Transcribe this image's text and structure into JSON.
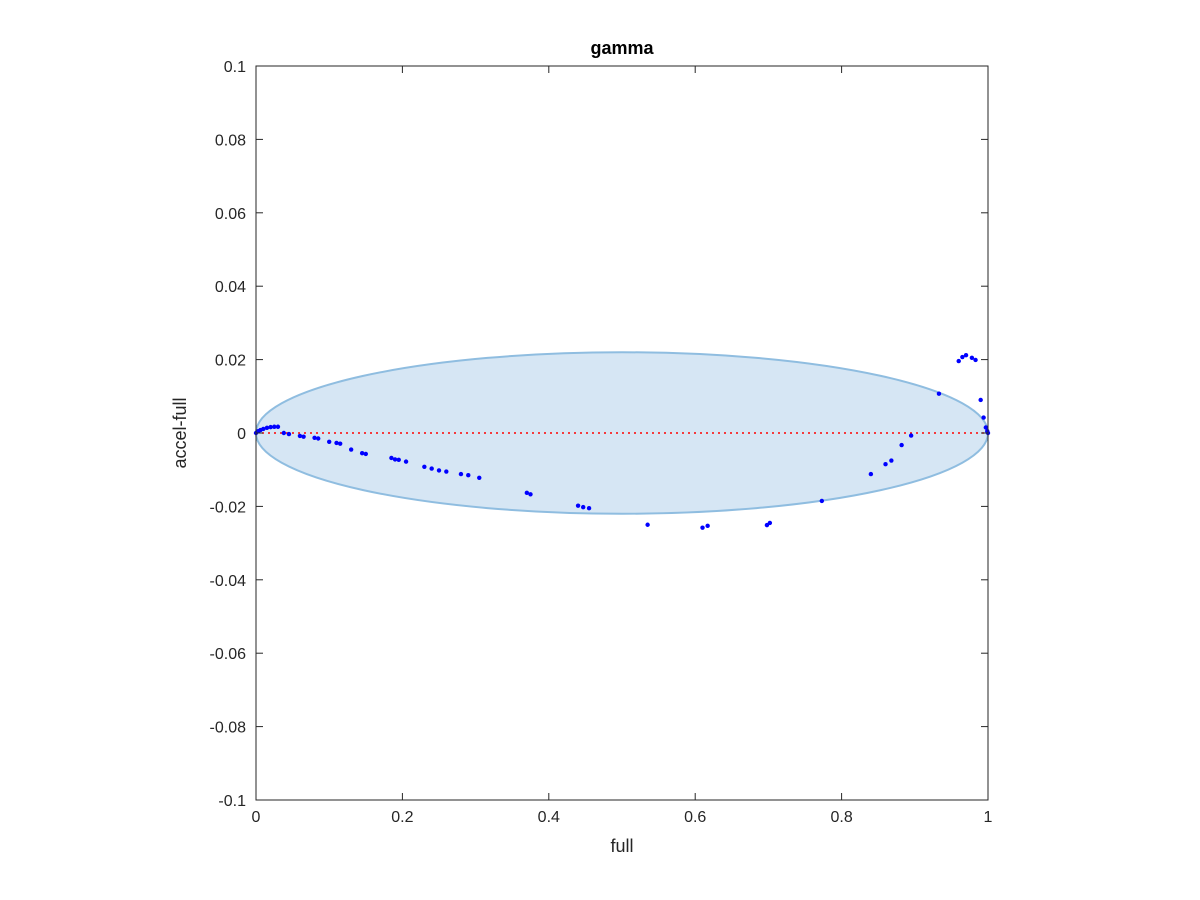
{
  "chart_data": {
    "type": "scatter",
    "title": "gamma",
    "xlabel": "full",
    "ylabel": "accel-full",
    "xlim": [
      0,
      1
    ],
    "ylim": [
      -0.1,
      0.1
    ],
    "xticks": [
      0,
      0.2,
      0.4,
      0.6,
      0.8,
      1
    ],
    "xtick_labels": [
      "0",
      "0.2",
      "0.4",
      "0.6",
      "0.8",
      "1"
    ],
    "yticks": [
      -0.1,
      -0.08,
      -0.06,
      -0.04,
      -0.02,
      0,
      0.02,
      0.04,
      0.06,
      0.08,
      0.1
    ],
    "ytick_labels": [
      "-0.1",
      "-0.08",
      "-0.06",
      "-0.04",
      "-0.02",
      "0",
      "0.02",
      "0.04",
      "0.06",
      "0.08",
      "0.1"
    ],
    "grid": false,
    "legend": "none",
    "reference_line": {
      "y": 0,
      "style": "dotted",
      "color": "#ff0000"
    },
    "ellipse": {
      "center_x": 0.5,
      "center_y": 0,
      "semi_axis_x": 0.5,
      "semi_axis_y": 0.022,
      "fill": "#d6e6f4",
      "stroke": "#8fbde0"
    },
    "series": [
      {
        "color": "#0000ff",
        "x": [
          0.0,
          0.003,
          0.006,
          0.01,
          0.015,
          0.02,
          0.025,
          0.03,
          0.038,
          0.045,
          0.06,
          0.065,
          0.08,
          0.085,
          0.1,
          0.11,
          0.115,
          0.13,
          0.145,
          0.15,
          0.185,
          0.19,
          0.195,
          0.205,
          0.23,
          0.24,
          0.25,
          0.26,
          0.28,
          0.29,
          0.305,
          0.37,
          0.375,
          0.44,
          0.447,
          0.455,
          0.535,
          0.61,
          0.617,
          0.698,
          0.702,
          0.773,
          0.84,
          0.86,
          0.868,
          0.882,
          0.895,
          0.933,
          0.96,
          0.965,
          0.97,
          0.978,
          0.983,
          0.99,
          0.994,
          0.997,
          0.999,
          1.0
        ],
        "y": [
          0.0,
          0.0005,
          0.0008,
          0.0011,
          0.0014,
          0.0016,
          0.0017,
          0.0017,
          0.0,
          -0.0003,
          -0.0008,
          -0.001,
          -0.0013,
          -0.0015,
          -0.0024,
          -0.0027,
          -0.0029,
          -0.0045,
          -0.0055,
          -0.0057,
          -0.0068,
          -0.0072,
          -0.0073,
          -0.0078,
          -0.0092,
          -0.0097,
          -0.0102,
          -0.0105,
          -0.0112,
          -0.0115,
          -0.0122,
          -0.0163,
          -0.0167,
          -0.0198,
          -0.0202,
          -0.0205,
          -0.025,
          -0.0258,
          -0.0253,
          -0.0251,
          -0.0245,
          -0.0185,
          -0.0112,
          -0.0085,
          -0.0075,
          -0.0033,
          -0.0007,
          0.0107,
          0.0196,
          0.0207,
          0.0212,
          0.0205,
          0.0199,
          0.009,
          0.0042,
          0.0015,
          0.0005,
          0.0
        ]
      }
    ]
  }
}
